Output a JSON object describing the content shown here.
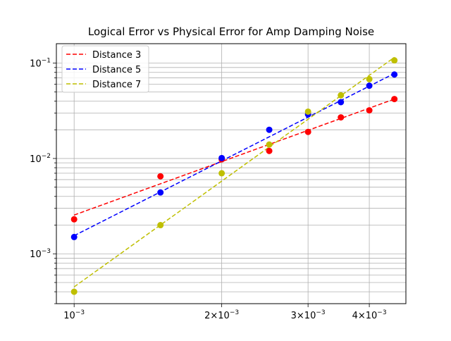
{
  "chart_data": {
    "type": "scatter",
    "title": "Logical Error vs Physical Error for Amp Damping Noise",
    "xlabel": "",
    "ylabel": "",
    "xscale": "log",
    "yscale": "log",
    "xlim": [
      0.00092,
      0.00475
    ],
    "ylim": [
      0.0003,
      0.16
    ],
    "grid": "on (major and minor)",
    "legend_position": "top-left",
    "x_tick_labels": [
      {
        "value": 0.001,
        "base": "10",
        "exp": "−3"
      },
      {
        "value": 0.002,
        "base": "2×10",
        "exp": "−3"
      },
      {
        "value": 0.003,
        "base": "3×10",
        "exp": "−3"
      },
      {
        "value": 0.004,
        "base": "4×10",
        "exp": "−3"
      }
    ],
    "y_tick_labels": [
      {
        "value": 0.001,
        "base": "10",
        "exp": "−3"
      },
      {
        "value": 0.01,
        "base": "10",
        "exp": "−2"
      },
      {
        "value": 0.1,
        "base": "10",
        "exp": "−1"
      }
    ],
    "x": [
      0.001,
      0.0015,
      0.002,
      0.0025,
      0.003,
      0.0035,
      0.004,
      0.0045
    ],
    "series": [
      {
        "name": "Distance 3",
        "color": "#ff0000",
        "values": [
          0.0023,
          0.0065,
          0.0098,
          0.012,
          0.019,
          0.027,
          0.032,
          0.042
        ],
        "fit": [
          0.00255,
          0.042
        ]
      },
      {
        "name": "Distance 5",
        "color": "#0000ff",
        "values": [
          0.0015,
          0.0044,
          0.0101,
          0.02,
          0.029,
          0.039,
          0.058,
          0.076
        ],
        "fit": [
          0.00155,
          0.078
        ]
      },
      {
        "name": "Distance 7",
        "color": "#bfbf00",
        "values": [
          0.0004,
          0.002,
          0.007,
          0.014,
          0.031,
          0.046,
          0.068,
          0.107
        ],
        "fit": [
          0.00045,
          0.115
        ]
      }
    ]
  }
}
